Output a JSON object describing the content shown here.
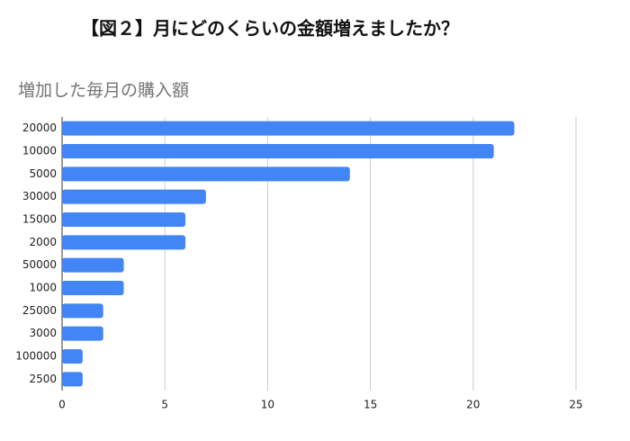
{
  "chart_data": {
    "type": "bar",
    "title": "【図２】月にどのくらいの金額増えましたか？",
    "subtitle": "増加した毎月の購入額",
    "categories": [
      "20000",
      "10000",
      "5000",
      "30000",
      "15000",
      "2000",
      "50000",
      "1000",
      "25000",
      "3000",
      "100000",
      "2500"
    ],
    "values": [
      22,
      21,
      14,
      7,
      6,
      6,
      3,
      3,
      2,
      2,
      1,
      1
    ],
    "color": "#4285f4",
    "xlim": [
      0,
      25
    ],
    "xticks": [
      0,
      5,
      10,
      15,
      20,
      25
    ],
    "grid": true
  }
}
